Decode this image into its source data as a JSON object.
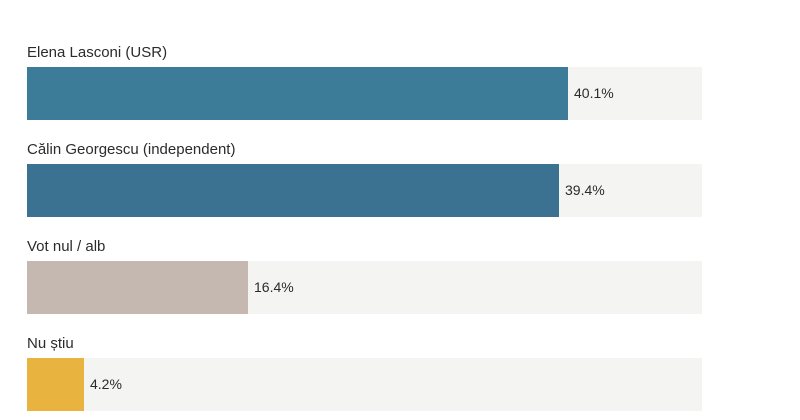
{
  "chart_data": {
    "type": "bar",
    "orientation": "horizontal",
    "categories": [
      "Elena Lasconi (USR)",
      "Călin Georgescu (independent)",
      "Vot nul / alb",
      "Nu știu"
    ],
    "values": [
      40.1,
      39.4,
      16.4,
      4.2
    ],
    "value_labels": [
      "40.1%",
      "39.4%",
      "16.4%",
      "4.2%"
    ],
    "colors": [
      "#3d7c99",
      "#3b7191",
      "#c5b8b1",
      "#e8b43f"
    ],
    "track_color": "#f4f4f2",
    "xlim": [
      0,
      50
    ],
    "grid": false,
    "legend": "none"
  }
}
